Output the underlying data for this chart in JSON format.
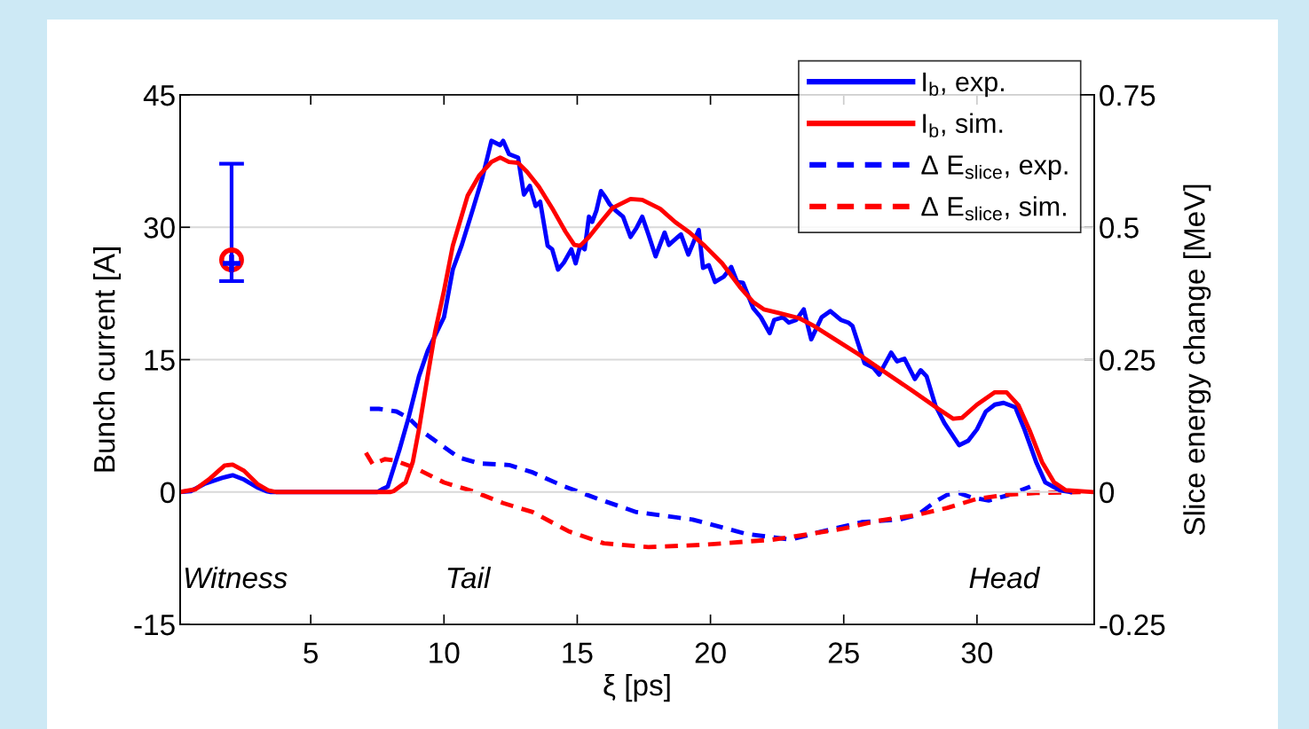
{
  "chart_data": {
    "type": "line",
    "xlabel": "ξ [ps]",
    "ylabel": "Bunch current [A]",
    "y2label": "Slice energy change [MeV]",
    "xlim": [
      0.1,
      34.4
    ],
    "xticks": [
      5,
      10,
      15,
      20,
      25,
      30
    ],
    "ylim": [
      -15,
      45
    ],
    "yticks": [
      -15,
      0,
      15,
      30,
      45
    ],
    "y2lim": [
      -0.25,
      0.75
    ],
    "y2ticks": [
      -0.25,
      0,
      0.25,
      0.5,
      0.75
    ],
    "grid": "y",
    "legend": "top right",
    "marker": "none",
    "series": [
      {
        "name": "I$_{b}$, exp.",
        "color": "#0000ff",
        "line_style": "solid",
        "x": [
          0.1,
          0.5,
          1.0,
          1.67,
          2.07,
          2.5,
          3.0,
          3.33,
          3.5,
          7.5,
          7.67,
          7.89,
          8.33,
          8.67,
          9.06,
          9.39,
          10.0,
          10.33,
          10.67,
          11.1,
          11.44,
          11.78,
          12.11,
          12.22,
          12.44,
          12.78,
          13.0,
          13.22,
          13.44,
          13.61,
          13.89,
          14.06,
          14.28,
          14.5,
          14.78,
          14.94,
          15.11,
          15.28,
          15.44,
          15.56,
          15.72,
          15.89,
          16.06,
          16.22,
          16.44,
          16.72,
          17.0,
          17.22,
          17.44,
          17.67,
          17.94,
          18.28,
          18.44,
          18.89,
          19.17,
          19.39,
          19.56,
          19.72,
          19.94,
          20.17,
          20.5,
          20.78,
          21.0,
          21.22,
          21.61,
          21.89,
          22.22,
          22.39,
          22.72,
          22.94,
          23.22,
          23.5,
          23.78,
          24.17,
          24.5,
          24.89,
          25.17,
          25.33,
          25.78,
          26.11,
          26.33,
          26.78,
          27.0,
          27.28,
          27.67,
          27.89,
          28.11,
          28.44,
          28.78,
          29.33,
          29.67,
          30.0,
          30.33,
          30.67,
          31.0,
          31.44,
          31.78,
          32.22,
          32.56,
          33.11,
          33.5
        ],
        "values": [
          0,
          0.1,
          0.9,
          1.6,
          1.9,
          1.4,
          0.5,
          0.1,
          0,
          0,
          0.3,
          0.6,
          4.8,
          8.4,
          13.1,
          16.0,
          19.8,
          25.2,
          28.0,
          32.2,
          35.6,
          39.8,
          39.3,
          39.8,
          38.3,
          37.9,
          33.7,
          34.7,
          32.4,
          32.9,
          27.9,
          27.5,
          25.2,
          26.0,
          27.5,
          25.9,
          27.9,
          27.5,
          31.2,
          30.6,
          31.9,
          34.1,
          33.4,
          32.6,
          31.9,
          31.2,
          28.9,
          29.9,
          31.2,
          29.2,
          26.7,
          29.4,
          28.0,
          29.2,
          26.9,
          28.5,
          29.7,
          25.4,
          25.7,
          23.8,
          24.4,
          25.5,
          23.8,
          23.7,
          20.8,
          19.8,
          18.0,
          19.5,
          19.8,
          19.2,
          19.5,
          20.7,
          17.3,
          19.8,
          20.5,
          19.5,
          19.2,
          18.8,
          14.6,
          14.1,
          13.3,
          15.8,
          14.8,
          15.1,
          12.8,
          13.8,
          13.1,
          9.8,
          7.8,
          5.3,
          5.8,
          7.1,
          9.1,
          9.9,
          10.1,
          9.6,
          7.1,
          3.4,
          1.1,
          0.2,
          0
        ]
      },
      {
        "name": "I$_{b}$, sim.",
        "color": "#ff0000",
        "line_style": "solid",
        "x": [
          0.1,
          0.67,
          1.17,
          1.77,
          2.07,
          2.5,
          3.0,
          3.4,
          3.7,
          8.0,
          8.11,
          8.56,
          8.83,
          9.06,
          9.33,
          9.67,
          10.0,
          10.33,
          10.89,
          11.33,
          11.78,
          12.11,
          12.44,
          12.78,
          13.11,
          13.56,
          14.11,
          14.56,
          14.89,
          15.11,
          15.44,
          15.89,
          16.33,
          17.0,
          17.44,
          18.11,
          18.67,
          19.22,
          19.78,
          20.44,
          21.11,
          21.61,
          22.0,
          22.56,
          23.33,
          23.89,
          24.67,
          25.56,
          26.44,
          27.56,
          28.56,
          29.11,
          29.44,
          30.0,
          30.67,
          31.11,
          31.56,
          32.0,
          32.44,
          32.89,
          33.33,
          34.3
        ],
        "values": [
          0,
          0.3,
          1.4,
          3.0,
          3.1,
          2.4,
          0.9,
          0.2,
          0,
          0,
          0.1,
          1.1,
          3.4,
          7.1,
          12.1,
          18.2,
          22.8,
          27.9,
          33.6,
          35.9,
          37.4,
          37.9,
          37.4,
          37.3,
          36.3,
          34.6,
          31.9,
          29.5,
          28.0,
          27.9,
          28.9,
          30.6,
          32.2,
          33.2,
          33.1,
          32.1,
          30.6,
          29.4,
          27.9,
          25.9,
          23.2,
          21.5,
          20.7,
          20.3,
          19.7,
          18.8,
          17.3,
          15.6,
          13.8,
          11.5,
          9.4,
          8.3,
          8.4,
          9.9,
          11.3,
          11.3,
          9.8,
          6.8,
          3.4,
          1.1,
          0.2,
          0
        ]
      },
      {
        "name": "Δ E$_{slice}$, exp.",
        "color": "#0000ff",
        "line_style": "dashed",
        "axis": "y2",
        "x": [
          7.22,
          7.56,
          8.22,
          8.67,
          9.22,
          10.0,
          10.56,
          11.33,
          12.44,
          13.33,
          14.44,
          15.78,
          17.22,
          19.33,
          21.33,
          23.0,
          24.0,
          25.67,
          27.11,
          27.78,
          28.44,
          28.89,
          29.33,
          29.78,
          30.44,
          31.11,
          32.0
        ],
        "values": [
          0.157,
          0.157,
          0.152,
          0.14,
          0.113,
          0.085,
          0.065,
          0.054,
          0.051,
          0.037,
          0.012,
          -0.013,
          -0.038,
          -0.052,
          -0.079,
          -0.09,
          -0.077,
          -0.057,
          -0.052,
          -0.043,
          -0.018,
          -0.005,
          -0.002,
          -0.01,
          -0.016,
          -0.007,
          0.01
        ]
      },
      {
        "name": "Δ E$_{slice}$, sim.",
        "color": "#ff0000",
        "line_style": "dashed",
        "axis": "y2",
        "x": [
          7.07,
          7.33,
          7.78,
          8.11,
          8.89,
          10.0,
          11.11,
          12.22,
          13.33,
          14.67,
          16.0,
          17.67,
          19.67,
          22.33,
          23.67,
          25.0,
          26.22,
          27.78,
          28.89,
          30.0,
          31.11,
          32.22,
          33.89
        ],
        "values": [
          0.074,
          0.052,
          0.062,
          0.06,
          0.046,
          0.018,
          0.001,
          -0.021,
          -0.038,
          -0.074,
          -0.097,
          -0.104,
          -0.1,
          -0.09,
          -0.08,
          -0.069,
          -0.055,
          -0.043,
          -0.03,
          -0.013,
          -0.005,
          -0.002,
          0
        ]
      },
      {
        "type": "scatter",
        "color": "#0000ff",
        "marker": "cross",
        "x": [
          2.03
        ],
        "values": [
          25.9
        ],
        "errors": [
          [
            23.9,
            37.2
          ]
        ]
      },
      {
        "type": "scatter",
        "color": "#ff0000",
        "marker": "circle",
        "x": [
          2.03
        ],
        "values": [
          26.3
        ]
      }
    ],
    "annotations": [
      "Witness",
      "Tail",
      "Head"
    ]
  }
}
